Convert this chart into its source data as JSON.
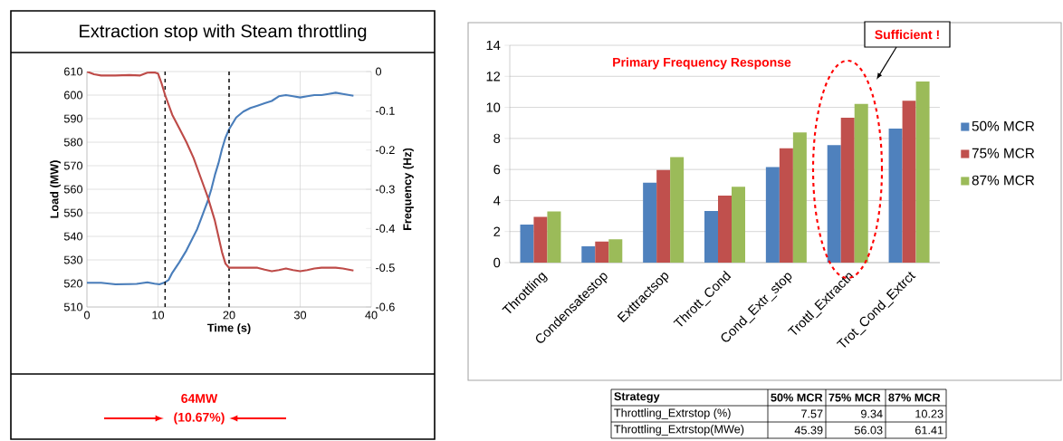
{
  "chart_data": [
    {
      "type": "line",
      "title": "Extraction stop with Steam throttling",
      "xlabel": "Time (s)",
      "ylabel": "Load (MW)",
      "y2label": "Frequency (Hz)",
      "xlim": [
        0,
        40
      ],
      "xticks": [
        0,
        10,
        20,
        30,
        40
      ],
      "ylim": [
        510,
        610
      ],
      "yticks": [
        510,
        520,
        530,
        540,
        550,
        560,
        570,
        580,
        590,
        600,
        610
      ],
      "y2lim": [
        -0.6,
        0
      ],
      "y2ticks": [
        -0.6,
        -0.5,
        -0.4,
        -0.3,
        -0.2,
        -0.1,
        0
      ],
      "grid": true,
      "series": [
        {
          "color": "#4a7ebb",
          "x": [
            0,
            2,
            4,
            6,
            7,
            8.5,
            9.5,
            10.2,
            11,
            11.5,
            12,
            13,
            14,
            15,
            15.5,
            16,
            16.5,
            17,
            17.5,
            18,
            18.5,
            19,
            19.5,
            20,
            20.5,
            21,
            22,
            23,
            24,
            25,
            26,
            27,
            28,
            29,
            30,
            31,
            32,
            33,
            34,
            35,
            36,
            37.5
          ],
          "values": [
            520.3,
            520.3,
            519.6,
            519.7,
            519.8,
            520.5,
            519.9,
            519.6,
            520.5,
            521.5,
            524.5,
            529,
            534,
            540,
            543,
            547,
            551,
            555,
            560,
            566,
            571,
            577,
            582,
            585.5,
            588,
            590.5,
            593,
            594.5,
            595.5,
            596.5,
            597.5,
            599.5,
            600,
            599.5,
            599,
            599.5,
            600,
            600,
            600.5,
            601,
            600.5,
            599.7
          ]
        },
        {
          "color": "#be4b48",
          "axis": "y2",
          "x": [
            0,
            1,
            2,
            4,
            6,
            7.5,
            8.5,
            9.5,
            10,
            10.5,
            11,
            12,
            13,
            14,
            15,
            16,
            17,
            18,
            18.5,
            19,
            19.5,
            20,
            21,
            22,
            23,
            24,
            25,
            26,
            27,
            28,
            29,
            30,
            31,
            32,
            33,
            35,
            36,
            37.5
          ],
          "values": [
            0,
            -0.007,
            -0.01,
            -0.01,
            -0.009,
            -0.01,
            -0.003,
            -0.002,
            -0.005,
            -0.03,
            -0.06,
            -0.11,
            -0.145,
            -0.18,
            -0.22,
            -0.27,
            -0.32,
            -0.38,
            -0.42,
            -0.46,
            -0.49,
            -0.5,
            -0.5,
            -0.5,
            -0.5,
            -0.5,
            -0.505,
            -0.509,
            -0.506,
            -0.502,
            -0.506,
            -0.509,
            -0.506,
            -0.502,
            -0.5,
            -0.5,
            -0.502,
            -0.507
          ]
        }
      ],
      "ref_lines": [
        {
          "axis": "x",
          "value": 11,
          "line_style": "dashed",
          "color": "#000000"
        },
        {
          "axis": "x",
          "value": 20,
          "line_style": "dashed",
          "color": "#000000"
        }
      ],
      "annotations": [
        "64MW",
        "(10.67%)"
      ]
    },
    {
      "type": "bar",
      "title": "Primary Frequency Response",
      "categories": [
        "Throttling",
        "Condensatestop",
        "Exttractsop",
        "Thrott_Cond",
        "Cond_Extr_stop",
        "Trottl_Extractn",
        "Trot_Cond_Extrct"
      ],
      "series": [
        {
          "name": "50% MCR",
          "color": "#4f81bd",
          "values": [
            2.45,
            1.05,
            5.15,
            3.32,
            6.15,
            7.57,
            8.63
          ]
        },
        {
          "name": "75% MCR",
          "color": "#c0504d",
          "values": [
            2.95,
            1.35,
            5.97,
            4.32,
            7.37,
            9.34,
            10.42
          ]
        },
        {
          "name": "87% MCR",
          "color": "#9bbb59",
          "values": [
            3.3,
            1.5,
            6.8,
            4.88,
            8.38,
            10.23,
            11.67
          ]
        }
      ],
      "ylim": [
        0,
        14
      ],
      "yticks": [
        0,
        2,
        4,
        6,
        8,
        10,
        12,
        14
      ],
      "grid": "y",
      "legend": "right",
      "annotations": [
        "Sufficient !",
        "Strategy",
        "50% MCR",
        "75% MCR",
        "87% MCR",
        "Throttling_Extrstop (%)",
        "7.57",
        "9.34",
        "10.23",
        "Throttling_Extrstop(MWe)",
        "45.39",
        "56.03",
        "61.41"
      ]
    }
  ]
}
